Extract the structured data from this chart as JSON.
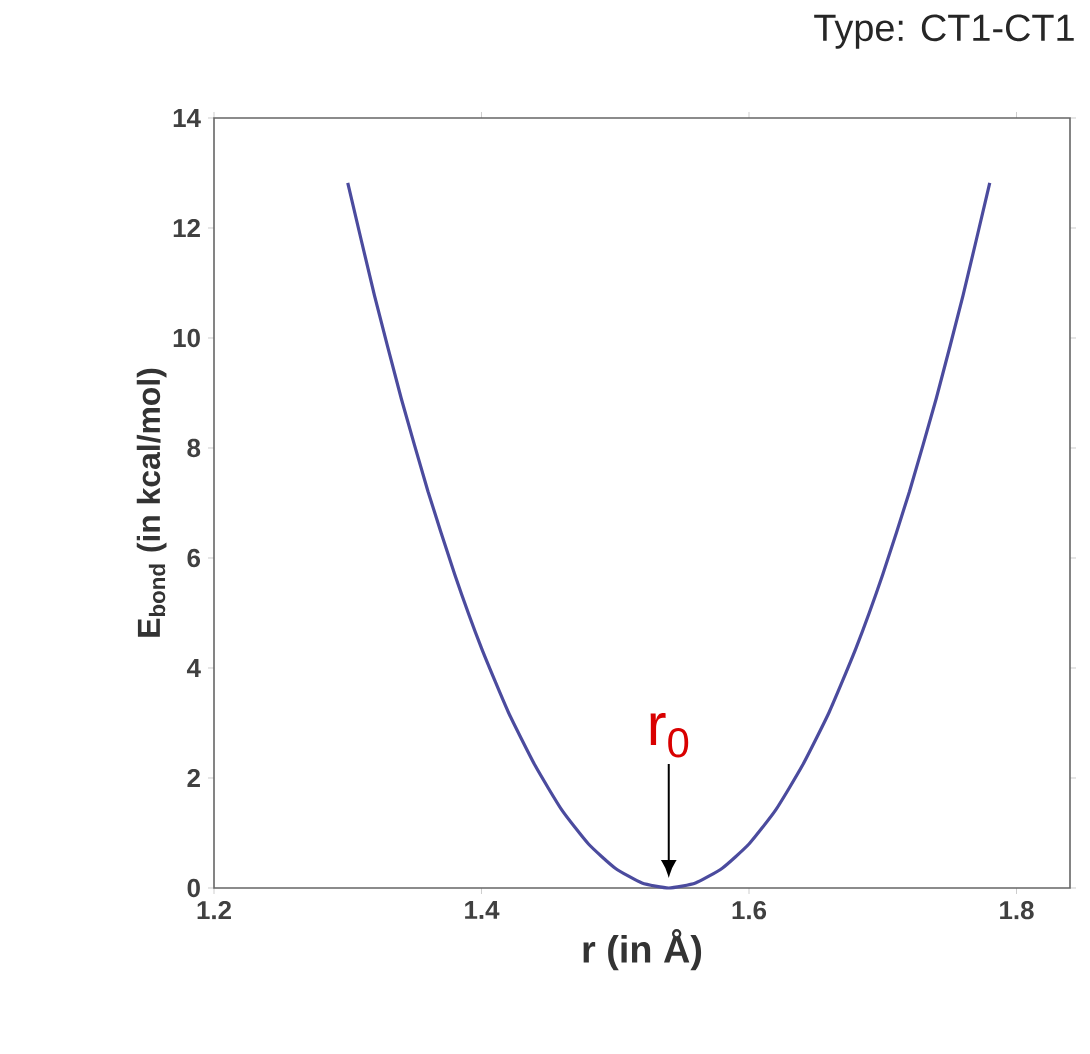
{
  "chart_data": {
    "type": "line",
    "title": "Type: CT1-CT1",
    "xlabel": "r (in Å)",
    "ylabel": "E$_{bond}$ (in kcal/mol)",
    "x": [
      1.3,
      1.32,
      1.34,
      1.36,
      1.38,
      1.4,
      1.42,
      1.44,
      1.46,
      1.48,
      1.5,
      1.52,
      1.54,
      1.56,
      1.58,
      1.6,
      1.62,
      1.64,
      1.66,
      1.68,
      1.7,
      1.72,
      1.74,
      1.76,
      1.78
    ],
    "series": [
      {
        "color": "#4b4b9e",
        "values": [
          12.82,
          10.77,
          8.9,
          7.21,
          5.7,
          4.36,
          3.2,
          2.23,
          1.42,
          0.8,
          0.36,
          0.09,
          0,
          0.09,
          0.36,
          0.8,
          1.42,
          2.23,
          3.2,
          4.36,
          5.7,
          7.21,
          8.9,
          10.77,
          12.82
        ]
      }
    ],
    "xlim": [
      1.2,
      1.84
    ],
    "ylim": [
      0,
      14
    ],
    "xticks": [
      1.2,
      1.4,
      1.6,
      1.8
    ],
    "yticks": [
      0,
      2,
      4,
      6,
      8,
      10,
      12,
      14
    ],
    "grid": false,
    "marker": "none",
    "line_style": "solid",
    "annotations": [
      {
        "text": "r$_{0}$",
        "x": 1.54,
        "y": 0
      }
    ]
  }
}
